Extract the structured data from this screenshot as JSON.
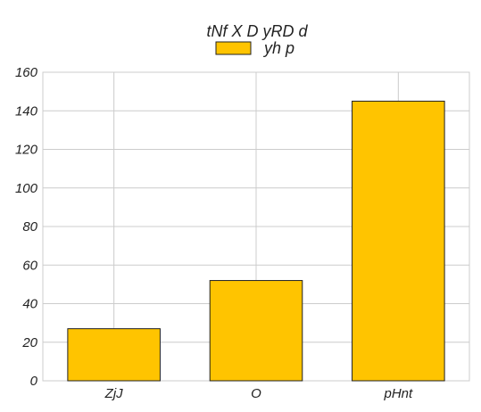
{
  "chart_data": {
    "type": "bar",
    "title": "tNf X D yRD d",
    "categories": [
      "ZjJ",
      "O",
      "pHnt"
    ],
    "series": [
      {
        "name": "yh p",
        "values": [
          27,
          52,
          145
        ]
      }
    ],
    "xlabel": "",
    "ylabel": "",
    "ylim": [
      0,
      160
    ],
    "yticks": [
      0,
      20,
      40,
      60,
      80,
      100,
      120,
      140,
      160
    ],
    "grid": true,
    "legend": "top-center",
    "colors": {
      "bar_fill": "#FFC400",
      "bar_stroke": "#222222",
      "grid": "#CCCCCC"
    }
  }
}
